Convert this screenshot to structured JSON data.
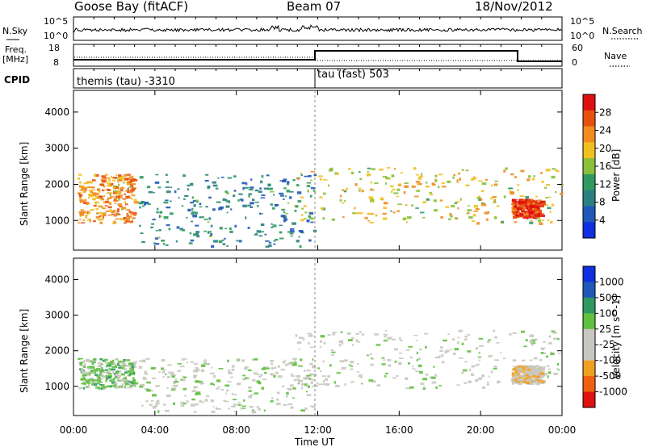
{
  "header": {
    "station": "Goose Bay (fitACF)",
    "beam": "Beam 07",
    "date": "18/Nov/2012"
  },
  "noise_panel": {
    "left_label": "N.Sky",
    "right_label": "N.Search",
    "left_ticks": [
      "10^5",
      "10^0"
    ],
    "right_ticks": [
      "10^5",
      "10^0"
    ]
  },
  "freq_panel": {
    "left_label": "Freq.",
    "left_unit": "[MHz]",
    "right_label": "Nave",
    "left_ticks": [
      "18",
      "8"
    ],
    "right_ticks": [
      "60",
      "0"
    ]
  },
  "cpid_panel": {
    "label": "CPID",
    "modes": [
      "themis (tau) -3310",
      "tau (fast) 503"
    ]
  },
  "colors": {
    "power_scale": [
      "#1030e0",
      "#2058b8",
      "#2a8080",
      "#2e9a60",
      "#8ac03a",
      "#f0c020",
      "#f08c20",
      "#e85010",
      "#e01010"
    ],
    "velocity_scale": [
      "#1030e0",
      "#2058b8",
      "#2e9a60",
      "#60c040",
      "#c8c8c0",
      "#c8c8c0",
      "#f0a020",
      "#f06010",
      "#e01010"
    ],
    "ground_scatter": "#c0c0b8"
  },
  "chart_data": [
    {
      "type": "heatmap",
      "title": "Power",
      "xlabel": "Time UT",
      "ylabel": "Slant Range [km]",
      "x_ticks": [
        "00:00",
        "04:00",
        "08:00",
        "12:00",
        "16:00",
        "20:00",
        "00:00"
      ],
      "xlim_hours": [
        0,
        24
      ],
      "y_ticks": [
        "1000",
        "2000",
        "3000",
        "4000"
      ],
      "ylim": [
        180,
        4600
      ],
      "colorbar": {
        "label": "Power [dB]",
        "ticks": [
          "4",
          "8",
          "12",
          "16",
          "20",
          "24",
          "28"
        ],
        "range": [
          0,
          30
        ]
      },
      "echo_regions": [
        {
          "t0": 0.2,
          "t1": 3.0,
          "r0": 950,
          "r1": 2300,
          "level": 22
        },
        {
          "t0": 3.2,
          "t1": 11.8,
          "r0": 300,
          "r1": 2300,
          "level": 8
        },
        {
          "t0": 10.8,
          "t1": 23.9,
          "r0": 950,
          "r1": 2500,
          "level": 18
        },
        {
          "t0": 21.5,
          "t1": 23.0,
          "r0": 1100,
          "r1": 1600,
          "level": 28
        }
      ]
    },
    {
      "type": "heatmap",
      "title": "Velocity",
      "xlabel": "Time UT",
      "ylabel": "Slant Range [km]",
      "x_ticks": [
        "00:00",
        "04:00",
        "08:00",
        "12:00",
        "16:00",
        "20:00",
        "00:00"
      ],
      "xlim_hours": [
        0,
        24
      ],
      "y_ticks": [
        "1000",
        "2000",
        "3000",
        "4000"
      ],
      "ylim": [
        180,
        4600
      ],
      "colorbar": {
        "label": "Velocity [m s^-1]",
        "ticks": [
          "1000",
          "500",
          "100",
          "25",
          "-25",
          "-100",
          "-500",
          "-1000"
        ],
        "range": [
          1000,
          -1000
        ]
      },
      "echo_regions": [
        {
          "t0": 0.2,
          "t1": 3.0,
          "r0": 950,
          "r1": 1800,
          "velocity": 200
        },
        {
          "t0": 3.2,
          "t1": 11.8,
          "r0": 300,
          "r1": 1800,
          "velocity": 0
        },
        {
          "t0": 10.8,
          "t1": 23.9,
          "r0": 950,
          "r1": 2600,
          "velocity": 0
        },
        {
          "t0": 21.5,
          "t1": 23.0,
          "r0": 1100,
          "r1": 1600,
          "velocity": -300
        }
      ]
    }
  ]
}
